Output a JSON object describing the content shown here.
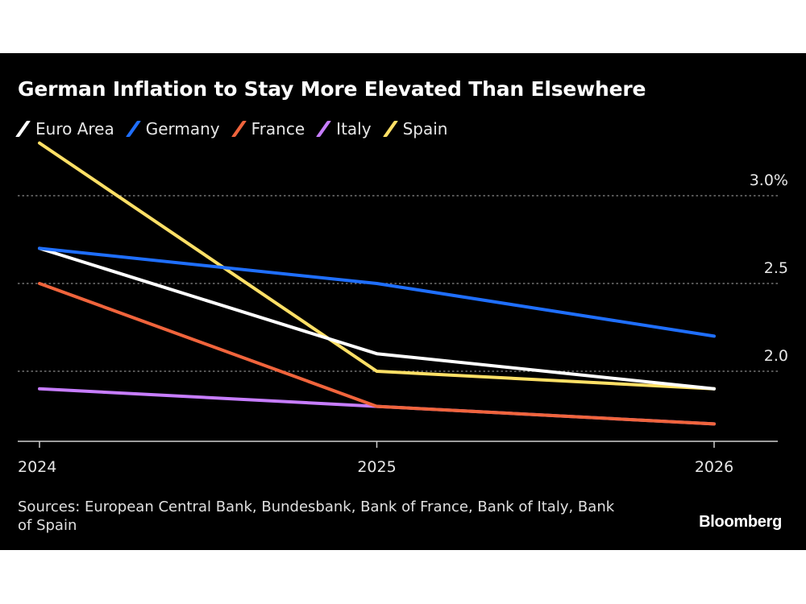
{
  "chart_data": {
    "type": "line",
    "title": "German Inflation to Stay More Elevated Than Elsewhere",
    "xlabel": "",
    "ylabel": "",
    "x": [
      "2024",
      "2025",
      "2026"
    ],
    "ylim": [
      1.6,
      3.3
    ],
    "yticks": [
      {
        "value": 2.0,
        "label": "2.0"
      },
      {
        "value": 2.5,
        "label": "2.5"
      },
      {
        "value": 3.0,
        "label": "3.0%"
      }
    ],
    "grid": "horizontal dotted",
    "legend_position": "top-left",
    "series": [
      {
        "name": "Italy",
        "color": "#c77dff",
        "values": [
          1.9,
          1.8,
          1.7
        ]
      },
      {
        "name": "France",
        "color": "#f0643c",
        "values": [
          2.5,
          1.8,
          1.7
        ]
      },
      {
        "name": "Spain",
        "color": "#ffe066",
        "values": [
          3.3,
          2.0,
          1.9
        ]
      },
      {
        "name": "Euro Area",
        "color": "#ffffff",
        "values": [
          2.7,
          2.1,
          1.9
        ]
      },
      {
        "name": "Germany",
        "color": "#1f6fff",
        "values": [
          2.7,
          2.5,
          2.2
        ]
      }
    ],
    "legend_order": [
      "Euro Area",
      "Germany",
      "France",
      "Italy",
      "Spain"
    ]
  },
  "legend": [
    {
      "label": "Euro Area",
      "color": "#ffffff"
    },
    {
      "label": "Germany",
      "color": "#1f6fff"
    },
    {
      "label": "France",
      "color": "#f0643c"
    },
    {
      "label": "Italy",
      "color": "#c77dff"
    },
    {
      "label": "Spain",
      "color": "#ffe066"
    }
  ],
  "source": "Sources: European Central Bank, Bundesbank, Bank of France, Bank of Italy, Bank of Spain",
  "brand": "Bloomberg"
}
